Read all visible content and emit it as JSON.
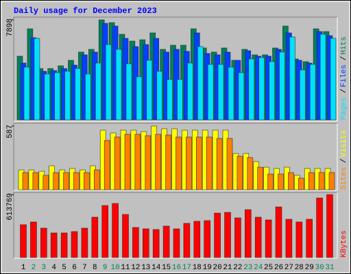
{
  "chart_data": {
    "type": "bar",
    "title": "Daily usage for December 2023",
    "categories": [
      "1",
      "2",
      "3",
      "4",
      "5",
      "6",
      "7",
      "8",
      "9",
      "10",
      "11",
      "12",
      "13",
      "14",
      "15",
      "16",
      "17",
      "18",
      "19",
      "20",
      "21",
      "22",
      "23",
      "24",
      "25",
      "26",
      "27",
      "28",
      "29",
      "30",
      "31"
    ],
    "category_colors": [
      "#000000",
      "#00805c",
      "#00805c",
      "#000000",
      "#000000",
      "#000000",
      "#000000",
      "#000000",
      "#00805c",
      "#00805c",
      "#000000",
      "#000000",
      "#000000",
      "#000000",
      "#000000",
      "#00805c",
      "#00805c",
      "#000000",
      "#000000",
      "#000000",
      "#000000",
      "#000000",
      "#00805c",
      "#00805c",
      "#000000",
      "#000000",
      "#000000",
      "#000000",
      "#000000",
      "#00805c",
      "#00805c"
    ],
    "legend_separator": "/",
    "panels": [
      {
        "ylim": [
          0,
          7898
        ],
        "yticks": [
          7898
        ],
        "series": [
          {
            "name": "Hits",
            "color": "#00805c",
            "values": [
              5031,
              7195,
              4057,
              4057,
              4274,
              4707,
              5356,
              5572,
              7898,
              7682,
              6762,
              6221,
              6329,
              6870,
              5572,
              5896,
              5896,
              7195,
              5680,
              5356,
              5680,
              4707,
              5572,
              5139,
              5139,
              5680,
              7411,
              4815,
              4598,
              7195,
              6978
            ]
          },
          {
            "name": "Files",
            "color": "#0040ff",
            "values": [
              4490,
              6492,
              3841,
              3895,
              4058,
              4328,
              5140,
              5356,
              7628,
              7412,
              6438,
              5789,
              5951,
              6438,
              5356,
              5572,
              5410,
              6871,
              5248,
              5140,
              5356,
              4707,
              5464,
              5031,
              5031,
              5572,
              6871,
              4707,
              4490,
              6979,
              6654
            ]
          },
          {
            "name": "Pages",
            "color": "#00e0ff",
            "values": [
              4166,
              6438,
              3625,
              3733,
              3841,
              4058,
              3625,
              4490,
              5951,
              5572,
              4436,
              3408,
              4707,
              3841,
              3192,
              3192,
              4490,
              5789,
              4382,
              4382,
              4166,
              3733,
              4815,
              4923,
              4599,
              5356,
              6546,
              3949,
              4382,
              6763,
              6438
            ]
          }
        ]
      },
      {
        "ylim": [
          0,
          587
        ],
        "yticks": [
          587
        ],
        "series": [
          {
            "name": "Visits",
            "color": "#ffff00",
            "values": [
              183,
              183,
              170,
              221,
              183,
              196,
              183,
              221,
              549,
              524,
              549,
              549,
              536,
              587,
              562,
              562,
              549,
              549,
              549,
              549,
              549,
              334,
              334,
              259,
              208,
              196,
              208,
              133,
              196,
              196,
              196
            ]
          },
          {
            "name": "Sites",
            "color": "#ff8000",
            "values": [
              158,
              158,
              133,
              158,
              158,
              158,
              158,
              183,
              454,
              486,
              511,
              511,
              498,
              511,
              505,
              486,
              486,
              486,
              486,
              473,
              473,
              309,
              297,
              208,
              145,
              145,
              158,
              107,
              158,
              158,
              158
            ]
          }
        ]
      },
      {
        "ylim": [
          0,
          613769
        ],
        "yticks": [
          613769
        ],
        "series": [
          {
            "name": "KBytes",
            "color": "#ff0000",
            "values": [
              320208,
              346892,
              286853,
              240156,
              240156,
              253498,
              286853,
              393589,
              506996,
              527009,
              420273,
              293524,
              280182,
              273511,
              306866,
              280182,
              333550,
              353563,
              360234,
              433615,
              440286,
              386918,
              466970,
              393589,
              366905,
              493654,
              373576,
              346892,
              373576,
              580377,
              613769
            ]
          }
        ]
      }
    ]
  }
}
